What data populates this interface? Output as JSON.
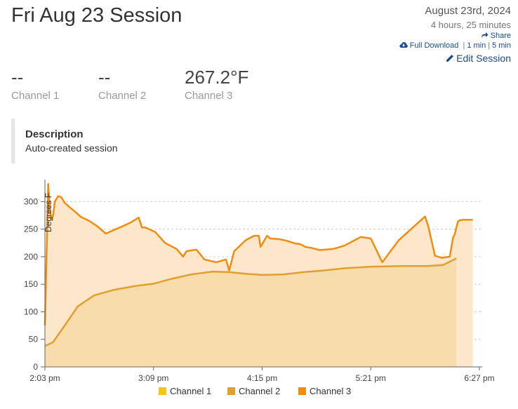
{
  "session": {
    "title": "Fri Aug 23 Session",
    "date": "August 23rd, 2024",
    "duration": "4 hours, 25 minutes",
    "share_label": "Share",
    "full_download_label": "Full Download",
    "one_min_label": "1 min",
    "five_min_label": "5 min",
    "edit_label": "Edit Session"
  },
  "channels": [
    {
      "value": "--",
      "label": "Channel 1"
    },
    {
      "value": "--",
      "label": "Channel 2"
    },
    {
      "value": "267.2°F",
      "label": "Channel 3"
    }
  ],
  "description": {
    "heading": "Description",
    "text": "Auto-created session"
  },
  "colors": {
    "channel_1": "#f5c518",
    "channel_2": "#e0a030",
    "channel_3": "#f28c0f",
    "link": "#1a4a8a"
  },
  "chart_data": {
    "type": "area",
    "ylabel": "Degrees F",
    "ylim": [
      0,
      340
    ],
    "yticks": [
      0,
      50,
      100,
      150,
      200,
      250,
      300
    ],
    "xlim": [
      "2:03 pm",
      "6:27 pm"
    ],
    "xticks": [
      "2:03 pm",
      "3:09 pm",
      "4:15 pm",
      "5:21 pm",
      "6:27 pm"
    ],
    "grid": "horizontal-dashed",
    "legend_position": "bottom",
    "series": [
      {
        "name": "Channel 1",
        "x": [],
        "y": []
      },
      {
        "name": "Channel 2",
        "x": [
          "2:03 pm",
          "2:08 pm",
          "2:15 pm",
          "2:23 pm",
          "2:33 pm",
          "2:45 pm",
          "2:58 pm",
          "3:09 pm",
          "3:20 pm",
          "3:32 pm",
          "3:45 pm",
          "3:55 pm",
          "4:05 pm",
          "4:15 pm",
          "4:28 pm",
          "4:40 pm",
          "4:52 pm",
          "5:05 pm",
          "5:21 pm",
          "5:40 pm",
          "5:55 pm",
          "6:05 pm",
          "6:13 pm"
        ],
        "y": [
          38,
          45,
          75,
          110,
          130,
          140,
          147,
          151,
          160,
          168,
          173,
          172,
          169,
          167,
          168,
          172,
          175,
          179,
          182,
          183,
          183,
          185,
          197
        ]
      },
      {
        "name": "Channel 3",
        "x": [
          "2:03 pm",
          "2:04 pm",
          "2:05 pm",
          "2:06 pm",
          "2:07 pm",
          "2:08 pm",
          "2:09 pm",
          "2:11 pm",
          "2:13 pm",
          "2:15 pm",
          "2:18 pm",
          "2:22 pm",
          "2:25 pm",
          "2:30 pm",
          "2:35 pm",
          "2:40 pm",
          "2:46 pm",
          "2:50 pm",
          "2:55 pm",
          "3:00 pm",
          "3:02 pm",
          "3:04 pm",
          "3:10 pm",
          "3:16 pm",
          "3:23 pm",
          "3:27 pm",
          "3:29 pm",
          "3:35 pm",
          "3:40 pm",
          "3:47 pm",
          "3:53 pm",
          "3:55 pm",
          "3:58 pm",
          "4:05 pm",
          "4:10 pm",
          "4:13 pm",
          "4:14 pm",
          "4:18 pm",
          "4:20 pm",
          "4:25 pm",
          "4:30 pm",
          "4:35 pm",
          "4:38 pm",
          "4:40 pm",
          "4:41 pm",
          "4:45 pm",
          "4:50 pm",
          "4:58 pm",
          "5:05 pm",
          "5:15 pm",
          "5:21 pm",
          "5:28 pm",
          "5:38 pm",
          "5:48 pm",
          "5:54 pm",
          "5:56 pm",
          "6:00 pm",
          "6:04 pm",
          "6:09 pm",
          "6:11 pm",
          "6:12 pm",
          "6:13 pm",
          "6:14 pm",
          "6:15 pm",
          "6:17 pm",
          "6:19 pm",
          "6:21 pm",
          "6:23 pm"
        ],
        "y": [
          75,
          200,
          332,
          285,
          268,
          275,
          300,
          310,
          308,
          298,
          290,
          280,
          272,
          265,
          255,
          242,
          250,
          255,
          262,
          271,
          253,
          253,
          245,
          225,
          214,
          200,
          210,
          213,
          195,
          190,
          195,
          175,
          210,
          230,
          238,
          238,
          218,
          238,
          233,
          232,
          229,
          224,
          223,
          220,
          218,
          216,
          212,
          214,
          220,
          236,
          233,
          190,
          230,
          257,
          273,
          255,
          202,
          198,
          200,
          235,
          240,
          253,
          264,
          266,
          267,
          267,
          267,
          267
        ]
      }
    ]
  }
}
